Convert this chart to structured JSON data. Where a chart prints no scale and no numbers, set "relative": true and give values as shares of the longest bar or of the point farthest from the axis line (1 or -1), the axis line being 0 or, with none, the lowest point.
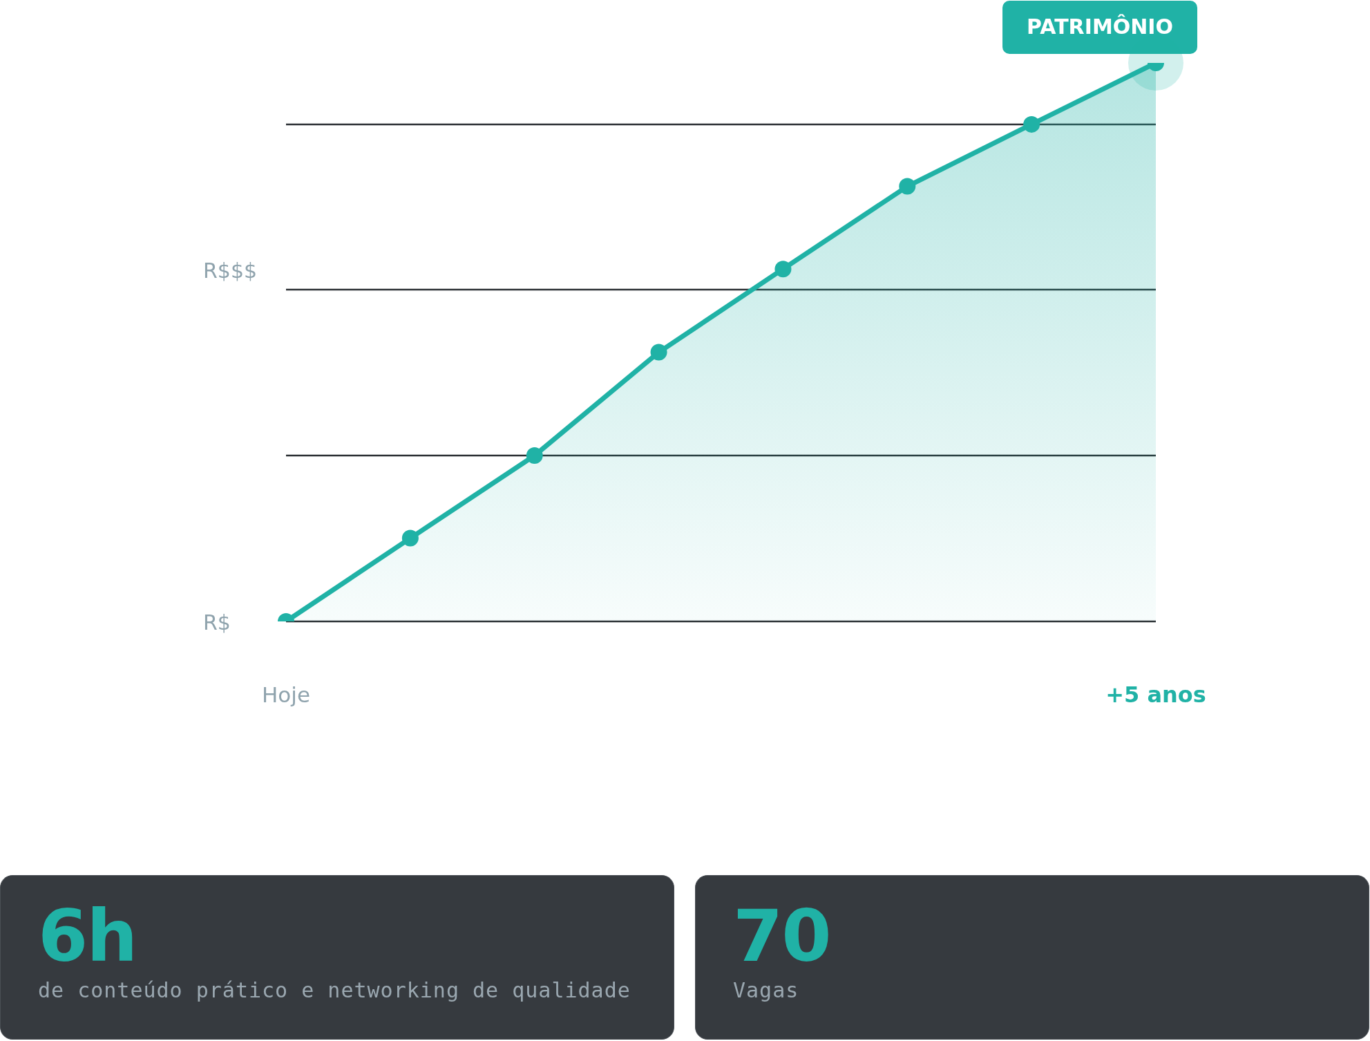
{
  "chart_data": [
    {
      "type": "area",
      "relative": true,
      "categories": [
        "Hoje",
        null,
        null,
        null,
        null,
        null,
        null,
        "+5 anos"
      ],
      "series": [
        {
          "color": "#20b2a6",
          "values": [
            0,
            0.149,
            0.297,
            0.482,
            0.631,
            0.779,
            0.89,
            1
          ]
        }
      ],
      "marker": "circle",
      "grid": "y",
      "legend": false,
      "annotations": [
        "R$",
        "R$$$",
        "PATRIMÔNIO"
      ]
    },
    {
      "type": "other",
      "title": "6h",
      "subtitle": "de conteúdo prático e networking de qualidade"
    },
    {
      "type": "other",
      "title": "70",
      "subtitle": "Vagas"
    }
  ]
}
